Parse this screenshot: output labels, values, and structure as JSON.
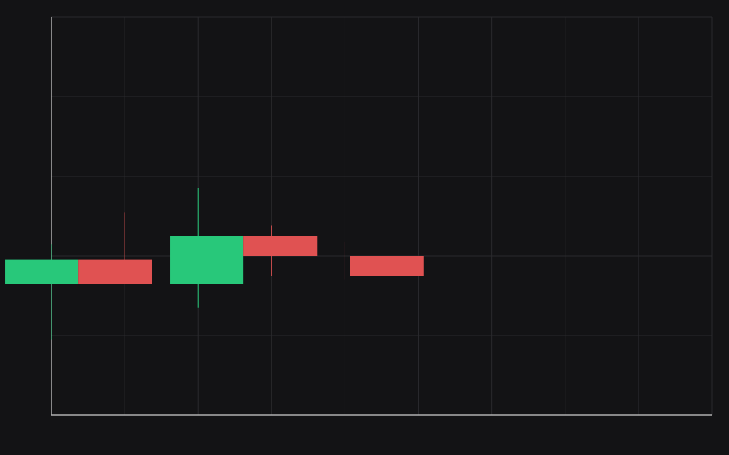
{
  "chart_data": {
    "type": "candlestick",
    "title": "",
    "xlabel": "",
    "ylabel": "",
    "x": [
      0,
      1,
      2,
      3,
      4
    ],
    "candles": [
      {
        "open": 96.5,
        "close": 99.5,
        "low": 89.5,
        "high": 101.5,
        "direction": "up"
      },
      {
        "open": 99.5,
        "close": 96.5,
        "low": 96.5,
        "high": 105.5,
        "direction": "down"
      },
      {
        "open": 96.5,
        "close": 102.5,
        "low": 93.5,
        "high": 108.5,
        "direction": "up"
      },
      {
        "open": 102.5,
        "close": 100.0,
        "low": 97.5,
        "high": 103.8,
        "direction": "down"
      },
      {
        "open": 100.0,
        "close": 97.5,
        "low": 97.0,
        "high": 101.8,
        "direction": "down"
      }
    ],
    "xlim": [
      0,
      9
    ],
    "ylim": [
      80,
      130
    ],
    "grid": true,
    "legend": "none"
  },
  "colors": {
    "background": "#131315",
    "grid": "#2a2a2d",
    "axis": "#b0b0b0",
    "up": "#28c87a",
    "down": "#e05252"
  }
}
